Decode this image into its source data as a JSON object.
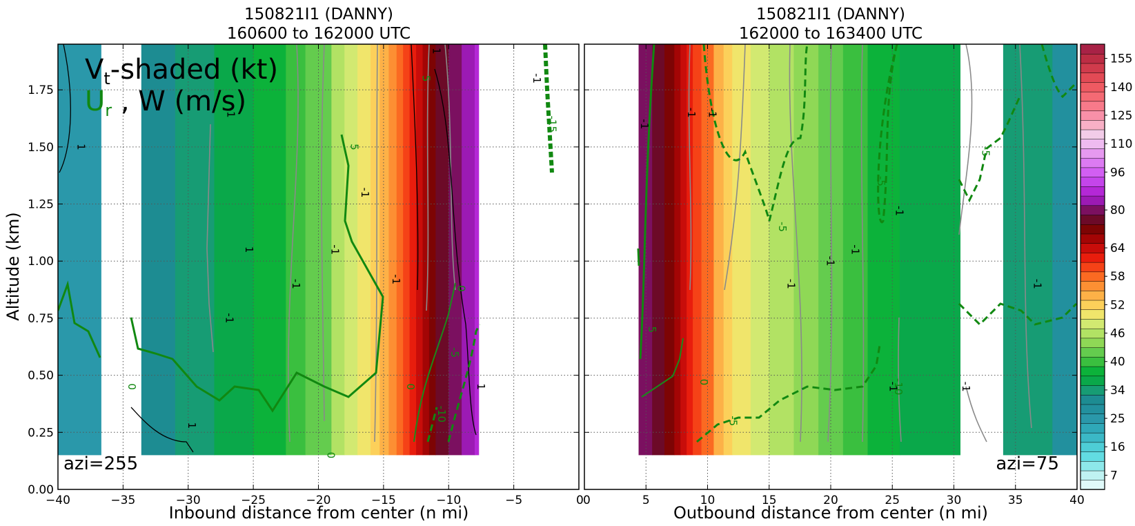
{
  "chart_data": [
    {
      "type": "heatmap",
      "title": "150821I1 (DANNY)",
      "subtitle": "160600 to 162000 UTC",
      "xlabel": "Inbound distance from center (n mi)",
      "ylabel": "Altitude (km)",
      "xlim": [
        -40,
        0
      ],
      "ylim": [
        0.0,
        1.95
      ],
      "xticks": [
        "−40",
        "−35",
        "−30",
        "−25",
        "−20",
        "−15",
        "−10",
        "−5",
        "0"
      ],
      "yticks": [
        "0.00",
        "0.25",
        "0.50",
        "0.75",
        "1.00",
        "1.25",
        "1.50",
        "1.75"
      ],
      "grid": true,
      "annotation": "azi=255",
      "legend_text": "Vt-shaded (kt)",
      "legend_text_2": "Ur , W (m/s)",
      "shade_x": [
        -40,
        -36.7,
        -33.6,
        -31,
        -28,
        -25,
        -22.5,
        -21,
        -19,
        -18,
        -17,
        -16,
        -15.3,
        -14.6,
        -14,
        -13.5,
        -13,
        -12.5,
        -12,
        -11.5,
        -11,
        -10,
        -9,
        -8,
        -7.7
      ],
      "vt_kt": [
        26,
        null,
        31,
        35,
        37,
        39,
        41,
        43,
        46,
        48,
        50,
        52,
        54,
        56,
        58,
        60,
        63,
        66,
        69,
        72,
        76,
        80,
        84,
        88,
        90
      ],
      "contour_labels": [
        {
          "x": -38.5,
          "y": 1.5,
          "text": "1",
          "c": "black"
        },
        {
          "x": -27,
          "y": 1.65,
          "text": "-1",
          "c": "black"
        },
        {
          "x": -25.6,
          "y": 1.05,
          "text": "1",
          "c": "black"
        },
        {
          "x": -27.1,
          "y": 0.75,
          "text": "-1",
          "c": "black"
        },
        {
          "x": -22,
          "y": 0.9,
          "text": "-1",
          "c": "black"
        },
        {
          "x": -19,
          "y": 1.05,
          "text": "-1",
          "c": "black"
        },
        {
          "x": -16.7,
          "y": 1.3,
          "text": "-1",
          "c": "black"
        },
        {
          "x": -14.3,
          "y": 0.92,
          "text": "-1",
          "c": "black"
        },
        {
          "x": -30,
          "y": 0.28,
          "text": "1",
          "c": "black"
        },
        {
          "x": -11.2,
          "y": 1.92,
          "text": "1",
          "c": "black"
        },
        {
          "x": -7.8,
          "y": 0.45,
          "text": "1",
          "c": "black"
        },
        {
          "x": -3.5,
          "y": 1.8,
          "text": "-1",
          "c": "black"
        },
        {
          "x": -17.5,
          "y": 1.5,
          "text": "5",
          "c": "green"
        },
        {
          "x": -12,
          "y": 1.8,
          "text": "5",
          "c": "green"
        },
        {
          "x": -9.3,
          "y": 0.88,
          "text": "0",
          "c": "green"
        },
        {
          "x": -13.2,
          "y": 0.45,
          "text": "0",
          "c": "green"
        },
        {
          "x": -34.6,
          "y": 0.45,
          "text": "0",
          "c": "green"
        },
        {
          "x": -19.3,
          "y": 0.15,
          "text": "0",
          "c": "green"
        },
        {
          "x": -9.8,
          "y": 0.6,
          "text": "-5",
          "c": "green"
        },
        {
          "x": -10.8,
          "y": 0.33,
          "text": "-10",
          "c": "green"
        },
        {
          "x": -2.3,
          "y": 1.6,
          "text": "-15",
          "c": "green"
        }
      ]
    },
    {
      "type": "heatmap",
      "title": "150821I1 (DANNY)",
      "subtitle": "162000 to 163400 UTC",
      "xlabel": "Outbound distance from center (n mi)",
      "ylabel": "",
      "xlim": [
        0,
        40
      ],
      "ylim": [
        0.0,
        1.95
      ],
      "xticks": [
        "0",
        "5",
        "10",
        "15",
        "20",
        "25",
        "30",
        "35",
        "40"
      ],
      "yticks": [
        "0.00",
        "0.25",
        "0.50",
        "0.75",
        "1.00",
        "1.25",
        "1.50",
        "1.75"
      ],
      "grid": true,
      "annotation": "azi=75",
      "shade_x": [
        4.4,
        5.5,
        6.5,
        7.3,
        7.8,
        8.3,
        8.8,
        9.5,
        10.5,
        11.3,
        12,
        13.5,
        15,
        17,
        19,
        21,
        23,
        25.6,
        30.5,
        34,
        38,
        40
      ],
      "vt_kt": [
        80,
        76,
        72,
        68,
        64,
        62,
        60,
        58,
        55,
        53,
        51,
        48,
        46,
        44,
        42,
        40,
        38,
        36,
        null,
        34,
        30,
        27
      ],
      "contour_labels": [
        {
          "x": 4.6,
          "y": 1.6,
          "text": "-1",
          "c": "black"
        },
        {
          "x": 8.4,
          "y": 1.65,
          "text": "-1",
          "c": "black"
        },
        {
          "x": 10.1,
          "y": 1.65,
          "text": "-1",
          "c": "black"
        },
        {
          "x": 16.5,
          "y": 0.9,
          "text": "-1",
          "c": "black"
        },
        {
          "x": 19.7,
          "y": 1.0,
          "text": "-1",
          "c": "black"
        },
        {
          "x": 21.7,
          "y": 1.05,
          "text": "-1",
          "c": "black"
        },
        {
          "x": 25.3,
          "y": 1.22,
          "text": "-1",
          "c": "black"
        },
        {
          "x": 24.8,
          "y": 0.45,
          "text": "-1",
          "c": "black"
        },
        {
          "x": 30.7,
          "y": 0.45,
          "text": "-1",
          "c": "black"
        },
        {
          "x": 36.5,
          "y": 0.9,
          "text": "-1",
          "c": "black"
        },
        {
          "x": 5.2,
          "y": 0.7,
          "text": "5",
          "c": "green"
        },
        {
          "x": 9.4,
          "y": 0.47,
          "text": "0",
          "c": "green"
        },
        {
          "x": 15.8,
          "y": 1.15,
          "text": "-5",
          "c": "green"
        },
        {
          "x": 23.8,
          "y": 1.35,
          "text": "-5",
          "c": "green"
        },
        {
          "x": 11.8,
          "y": 0.3,
          "text": "-5",
          "c": "green"
        },
        {
          "x": 25.2,
          "y": 0.45,
          "text": "-10",
          "c": "green"
        },
        {
          "x": 32.3,
          "y": 1.48,
          "text": "-5",
          "c": "green"
        }
      ]
    }
  ],
  "colorbar": {
    "tick_labels": [
      "155",
      "140",
      "125",
      "110",
      "96",
      "80",
      "64",
      "58",
      "52",
      "46",
      "40",
      "34",
      "25",
      "16",
      "7"
    ],
    "tick_values": [
      155,
      140,
      125,
      110,
      96,
      80,
      64,
      58,
      52,
      46,
      40,
      34,
      25,
      16,
      7
    ],
    "levels": [
      4,
      7,
      10,
      13,
      16,
      19,
      22,
      25,
      28,
      31,
      34,
      36,
      38,
      40,
      42,
      44,
      46,
      48,
      50,
      52,
      54,
      56,
      58,
      60,
      62,
      64,
      68,
      72,
      76,
      80,
      84,
      88,
      92,
      96,
      100,
      105,
      110,
      115,
      120,
      125,
      130,
      135,
      140,
      145,
      150,
      155,
      160
    ],
    "colors": [
      "#e0fafa",
      "#bff2f2",
      "#8de8ea",
      "#62dce2",
      "#4ecdd6",
      "#3bb8c6",
      "#2fa8b8",
      "#2a98aa",
      "#22909e",
      "#1d8c92",
      "#179c74",
      "#0aa84a",
      "#0cb23a",
      "#3abf3f",
      "#64cc4e",
      "#8fd856",
      "#b2e264",
      "#d2e971",
      "#f0e56b",
      "#fcd05a",
      "#fdb147",
      "#fd8f33",
      "#fb6a22",
      "#f54217",
      "#e81d0d",
      "#c80d0a",
      "#a30505",
      "#7d0404",
      "#6c0a28",
      "#7b1060",
      "#9c1ab4",
      "#b428d6",
      "#c445ea",
      "#d25ff2",
      "#dc7bf2",
      "#e699f0",
      "#eebbf0",
      "#f2cce8",
      "#f8b0c6",
      "#f890a8",
      "#f87a8a",
      "#f46a74",
      "#ee5a62",
      "#e24a55",
      "#d03b4c",
      "#bc2d44",
      "#a82246"
    ]
  }
}
